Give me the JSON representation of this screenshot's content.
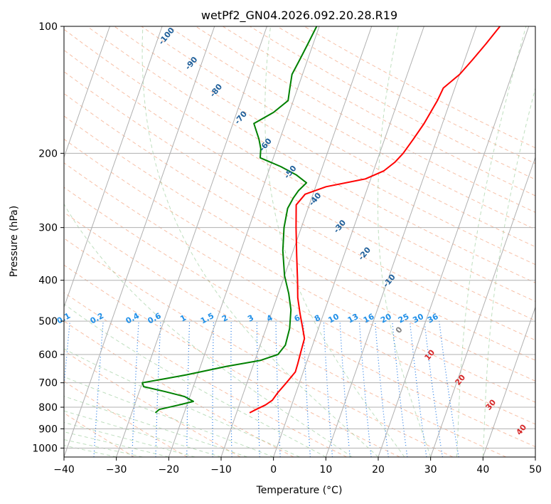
{
  "chart_data": {
    "type": "skew-t log-p",
    "title": "wetPf2_GN04.2026.092.20.28.R19",
    "xlabel": "Temperature (°C)",
    "ylabel": "Pressure (hPa)",
    "xlim": [
      -40,
      50
    ],
    "ylim": [
      1050,
      100
    ],
    "y_scale": "log",
    "x_ticks": [
      -40,
      -30,
      -20,
      -10,
      0,
      10,
      20,
      30,
      40,
      50
    ],
    "y_ticks": [
      100,
      200,
      300,
      400,
      500,
      600,
      700,
      800,
      900,
      1000
    ],
    "grid": true,
    "series": [
      {
        "color": "#ff0000",
        "points": [
          {
            "p": 825,
            "t": -7.5
          },
          {
            "p": 810,
            "t": -6.5
          },
          {
            "p": 790,
            "t": -5.0
          },
          {
            "p": 770,
            "t": -4.0
          },
          {
            "p": 740,
            "t": -3.5
          },
          {
            "p": 700,
            "t": -2.5
          },
          {
            "p": 660,
            "t": -1.5
          },
          {
            "p": 630,
            "t": -1.6
          },
          {
            "p": 590,
            "t": -1.8
          },
          {
            "p": 550,
            "t": -2.0
          },
          {
            "p": 520,
            "t": -3.0
          },
          {
            "p": 480,
            "t": -4.5
          },
          {
            "p": 440,
            "t": -6.0
          },
          {
            "p": 400,
            "t": -7.2
          },
          {
            "p": 350,
            "t": -9.0
          },
          {
            "p": 300,
            "t": -11.0
          },
          {
            "p": 265,
            "t": -12.5
          },
          {
            "p": 250,
            "t": -11.5
          },
          {
            "p": 240,
            "t": -8.0
          },
          {
            "p": 230,
            "t": -1.0
          },
          {
            "p": 220,
            "t": 2.0
          },
          {
            "p": 210,
            "t": 3.5
          },
          {
            "p": 200,
            "t": 4.5
          },
          {
            "p": 185,
            "t": 5.5
          },
          {
            "p": 170,
            "t": 6.5
          },
          {
            "p": 150,
            "t": 7.5
          },
          {
            "p": 140,
            "t": 7.8
          },
          {
            "p": 130,
            "t": 10.0
          },
          {
            "p": 120,
            "t": 11.5
          },
          {
            "p": 110,
            "t": 13.0
          },
          {
            "p": 100,
            "t": 14.5
          }
        ]
      },
      {
        "color": "#008000",
        "points": [
          {
            "p": 825,
            "t": -25.5
          },
          {
            "p": 810,
            "t": -25.0
          },
          {
            "p": 790,
            "t": -21.5
          },
          {
            "p": 775,
            "t": -19.0
          },
          {
            "p": 755,
            "t": -21.0
          },
          {
            "p": 735,
            "t": -25.0
          },
          {
            "p": 715,
            "t": -29.5
          },
          {
            "p": 700,
            "t": -30.0
          },
          {
            "p": 685,
            "t": -26.0
          },
          {
            "p": 670,
            "t": -22.0
          },
          {
            "p": 640,
            "t": -15.0
          },
          {
            "p": 620,
            "t": -9.0
          },
          {
            "p": 600,
            "t": -6.0
          },
          {
            "p": 570,
            "t": -5.2
          },
          {
            "p": 520,
            "t": -5.5
          },
          {
            "p": 470,
            "t": -6.5
          },
          {
            "p": 430,
            "t": -8.0
          },
          {
            "p": 390,
            "t": -10.0
          },
          {
            "p": 340,
            "t": -12.0
          },
          {
            "p": 300,
            "t": -13.3
          },
          {
            "p": 270,
            "t": -13.9
          },
          {
            "p": 255,
            "t": -13.5
          },
          {
            "p": 245,
            "t": -13.0
          },
          {
            "p": 235,
            "t": -12.0
          },
          {
            "p": 225,
            "t": -14.5
          },
          {
            "p": 215,
            "t": -18.0
          },
          {
            "p": 205,
            "t": -22.5
          },
          {
            "p": 195,
            "t": -23.0
          },
          {
            "p": 185,
            "t": -24.0
          },
          {
            "p": 170,
            "t": -26.0
          },
          {
            "p": 160,
            "t": -23.0
          },
          {
            "p": 150,
            "t": -21.0
          },
          {
            "p": 140,
            "t": -21.5
          },
          {
            "p": 130,
            "t": -22.0
          },
          {
            "p": 120,
            "t": -21.5
          },
          {
            "p": 110,
            "t": -21.0
          },
          {
            "p": 100,
            "t": -20.5
          }
        ]
      }
    ],
    "dry_adiabat_labels": [
      "-100",
      "-90",
      "-80",
      "-70",
      "-60",
      "-50",
      "-40",
      "-30",
      "-20",
      "-10"
    ],
    "mixing_ratio_labels": [
      "0.1",
      "0.2",
      "0.4",
      "0.6",
      "1",
      "1.5",
      "2",
      "3",
      "4",
      "6",
      "8",
      "10",
      "13",
      "16",
      "20",
      "25",
      "30",
      "36"
    ],
    "moist_adiabat_labels": [
      "0",
      "10",
      "20",
      "30",
      "40"
    ]
  }
}
